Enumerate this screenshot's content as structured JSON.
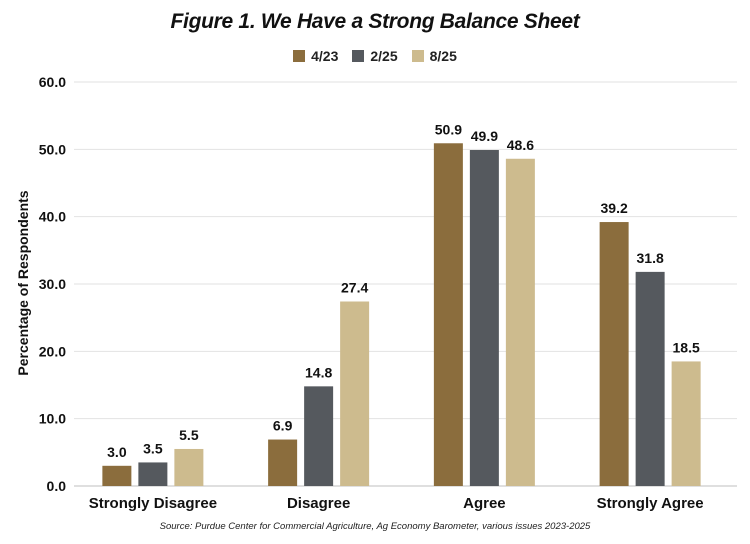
{
  "chart_data": {
    "type": "bar",
    "title": "Figure 1. We Have a Strong Balance Sheet",
    "ylabel": "Percentage of Respondents",
    "xlabel": "",
    "ylim": [
      0,
      60
    ],
    "yticks": [
      "0.0",
      "10.0",
      "20.0",
      "30.0",
      "40.0",
      "50.0",
      "60.0"
    ],
    "grid": true,
    "legend_position": "top-center",
    "categories": [
      "Strongly Disagree",
      "Disagree",
      "Agree",
      "Strongly Agree"
    ],
    "series": [
      {
        "name": "4/23",
        "color": "#8b6d3d",
        "values": [
          3.0,
          6.9,
          50.9,
          39.2
        ],
        "labels": [
          "3.0",
          "6.9",
          "50.9",
          "39.2"
        ]
      },
      {
        "name": "2/25",
        "color": "#55595e",
        "values": [
          3.5,
          14.8,
          49.9,
          31.8
        ],
        "labels": [
          "3.5",
          "14.8",
          "49.9",
          "31.8"
        ]
      },
      {
        "name": "8/25",
        "color": "#cdbb8e",
        "values": [
          5.5,
          27.4,
          48.6,
          18.5
        ],
        "labels": [
          "5.5",
          "27.4",
          "48.6",
          "18.5"
        ]
      }
    ],
    "source": "Source: Purdue Center for Commercial Agriculture, Ag Economy Barometer, various issues 2023-2025"
  }
}
